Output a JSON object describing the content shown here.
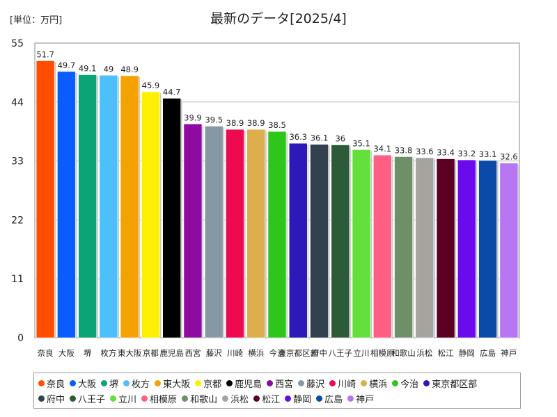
{
  "unit_label": "[単位：万円]",
  "chart_data": {
    "type": "bar",
    "title": "最新のデータ[2025/4]",
    "ylim": [
      0,
      55
    ],
    "yticks": [
      0,
      11,
      22,
      33,
      44,
      55
    ],
    "grid": true,
    "legend_position": "bottom",
    "categories": [
      "奈良",
      "大阪",
      "堺",
      "枚方",
      "東大阪",
      "京都",
      "鹿児島",
      "西宮",
      "藤沢",
      "川崎",
      "横浜",
      "今治",
      "東京都区部",
      "府中",
      "八王子",
      "立川",
      "相模原",
      "和歌山",
      "浜松",
      "松江",
      "静岡",
      "広島",
      "神戸"
    ],
    "values": [
      51.7,
      49.7,
      49.1,
      49,
      48.9,
      45.9,
      44.7,
      39.9,
      39.5,
      38.9,
      38.9,
      38.5,
      36.3,
      36.1,
      36,
      35.1,
      34.1,
      33.8,
      33.6,
      33.4,
      33.2,
      33.1,
      32.6
    ],
    "value_labels": [
      "51.7",
      "49.7",
      "49.1",
      "49",
      "48.9",
      "45.9",
      "44.7",
      "39.9",
      "39.5",
      "38.9",
      "38.9",
      "38.5",
      "36.3",
      "36.1",
      "36",
      "35.1",
      "34.1",
      "33.8",
      "33.6",
      "33.4",
      "33.2",
      "33.1",
      "32.6"
    ],
    "colors": [
      "#ff4e00",
      "#0a5cff",
      "#0aa476",
      "#4dbfff",
      "#f5a200",
      "#fff000",
      "#000000",
      "#8e0aa0",
      "#8798a5",
      "#ee0a4e",
      "#dcae4d",
      "#2ec61b",
      "#2a1ab8",
      "#33414e",
      "#2d5a37",
      "#63e03a",
      "#ff5f82",
      "#6e8f67",
      "#a6a49f",
      "#5b0022",
      "#6a0aed",
      "#0c4aa8",
      "#b777f5"
    ]
  },
  "legend": {
    "items": [
      "奈良",
      "大阪",
      "堺",
      "枚方",
      "東大阪",
      "京都",
      "鹿児島",
      "西宮",
      "藤沢",
      "川崎",
      "横浜",
      "今治",
      "東京都区部",
      "府中",
      "八王子",
      "立川",
      "相模原",
      "和歌山",
      "浜松",
      "松江",
      "静岡",
      "広島",
      "神戸"
    ]
  }
}
